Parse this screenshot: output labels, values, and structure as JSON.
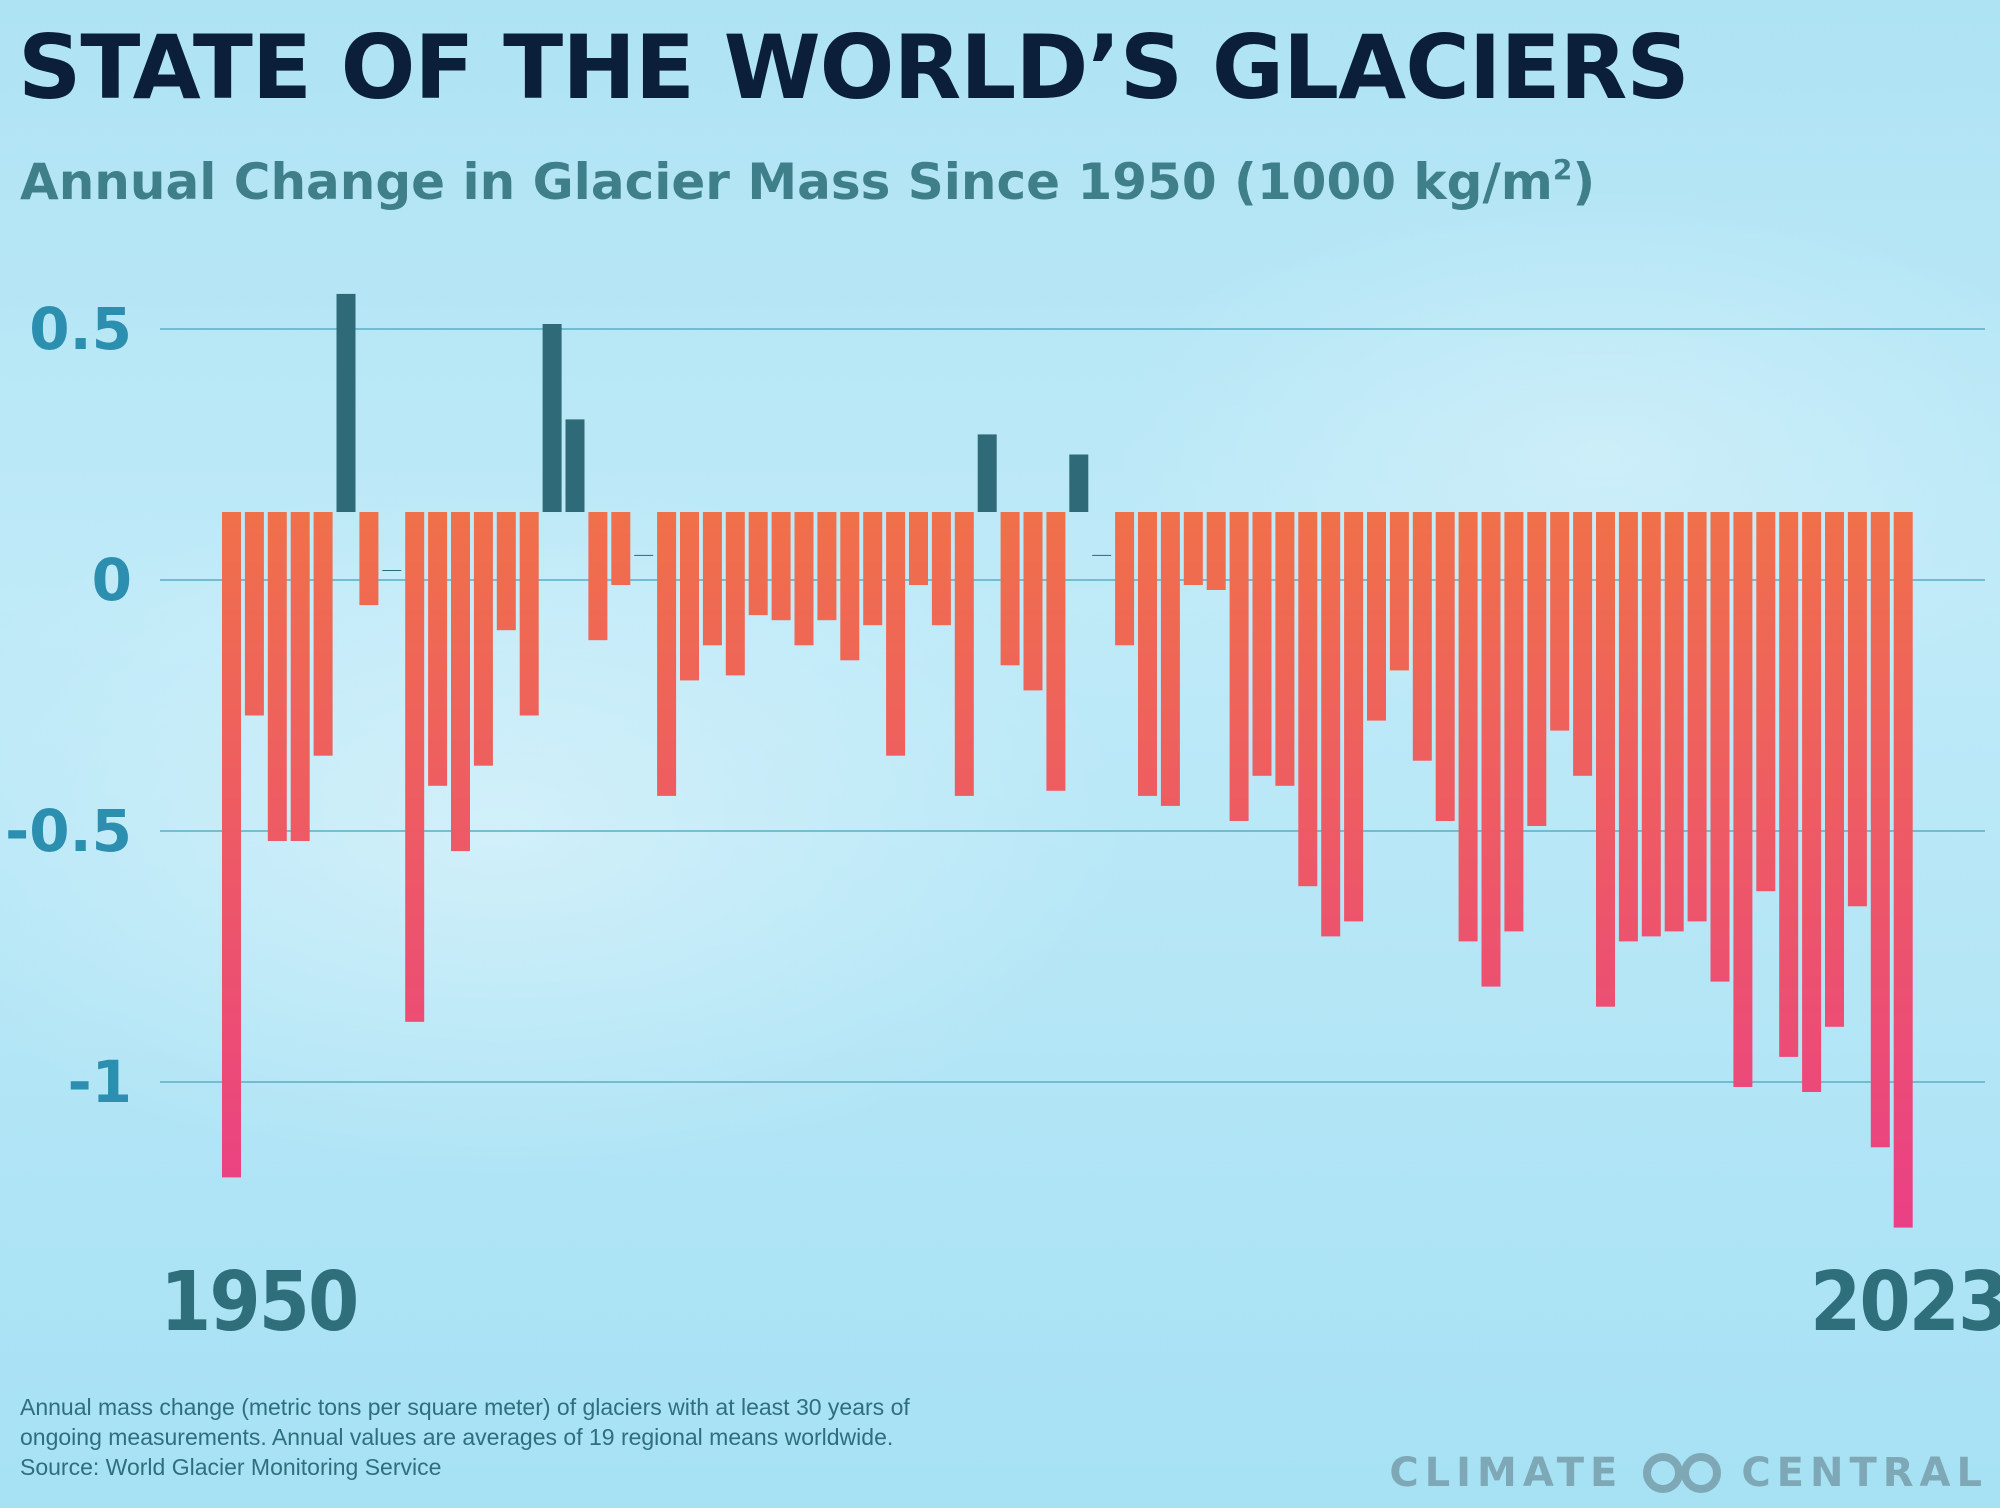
{
  "title": "STATE OF THE WORLD’S GLACIERS",
  "subtitle": {
    "text": "Annual Change in Glacier Mass Since 1950 (1000 kg/m",
    "superscript": "2",
    "closing": ")"
  },
  "year_labels": {
    "start": "1950",
    "end": "2023"
  },
  "footnote": [
    "Annual mass change (metric tons per square meter) of glaciers with at least 30 years of",
    "ongoing measurements. Annual values are averages of 19 regional means worldwide.",
    "Source: World Glacier Monitoring Service"
  ],
  "brand": {
    "left": "CLIMATE",
    "right": "CENTRAL",
    "logo_icon": "climate-central-logo-icon"
  },
  "colors": {
    "positive": "#2f6a78",
    "negative_top": "#f0704a",
    "negative_bottom": "#ea3f86",
    "gridline": "#5aaec4",
    "tick_text": "#2c8fb0",
    "title": "#0b1f3a",
    "subtitle": "#3f7f8a"
  },
  "chart_data": {
    "type": "bar",
    "title": "STATE OF THE WORLD’S GLACIERS",
    "subtitle": "Annual Change in Glacier Mass Since 1950 (1000 kg/m²)",
    "xlabel": "",
    "ylabel": "",
    "x_range": [
      1950,
      2023
    ],
    "ylim": [
      -1.3,
      0.6
    ],
    "yticks": [
      0.5,
      0,
      -0.5,
      -1
    ],
    "ytick_labels": [
      "0.5",
      "0",
      "-0.5",
      "-1"
    ],
    "grid": true,
    "legend": "none",
    "categories": [
      1950,
      1951,
      1952,
      1953,
      1954,
      1955,
      1956,
      1957,
      1958,
      1959,
      1960,
      1961,
      1962,
      1963,
      1964,
      1965,
      1966,
      1967,
      1968,
      1969,
      1970,
      1971,
      1972,
      1973,
      1974,
      1975,
      1976,
      1977,
      1978,
      1979,
      1980,
      1981,
      1982,
      1983,
      1984,
      1985,
      1986,
      1987,
      1988,
      1989,
      1990,
      1991,
      1992,
      1993,
      1994,
      1995,
      1996,
      1997,
      1998,
      1999,
      2000,
      2001,
      2002,
      2003,
      2004,
      2005,
      2006,
      2007,
      2008,
      2009,
      2010,
      2011,
      2012,
      2013,
      2014,
      2015,
      2016,
      2017,
      2018,
      2019,
      2020,
      2021,
      2022,
      2023
    ],
    "values": [
      -1.19,
      -0.27,
      -0.52,
      -0.52,
      -0.35,
      0.57,
      -0.05,
      0.02,
      -0.88,
      -0.41,
      -0.54,
      -0.37,
      -0.1,
      -0.27,
      0.51,
      0.32,
      -0.12,
      -0.01,
      0.05,
      -0.43,
      -0.2,
      -0.13,
      -0.19,
      -0.07,
      -0.08,
      -0.13,
      -0.08,
      -0.16,
      -0.09,
      -0.35,
      -0.01,
      -0.09,
      -0.43,
      0.29,
      -0.17,
      -0.22,
      -0.42,
      0.25,
      0.05,
      -0.13,
      -0.43,
      -0.45,
      -0.01,
      -0.02,
      -0.48,
      -0.39,
      -0.41,
      -0.61,
      -0.71,
      -0.68,
      -0.28,
      -0.18,
      -0.36,
      -0.48,
      -0.72,
      -0.81,
      -0.7,
      -0.49,
      -0.3,
      -0.39,
      -0.85,
      -0.72,
      -0.71,
      -0.7,
      -0.68,
      -0.8,
      -1.01,
      -0.62,
      -0.95,
      -1.02,
      -0.89,
      -0.65,
      -1.13,
      -1.29
    ]
  }
}
